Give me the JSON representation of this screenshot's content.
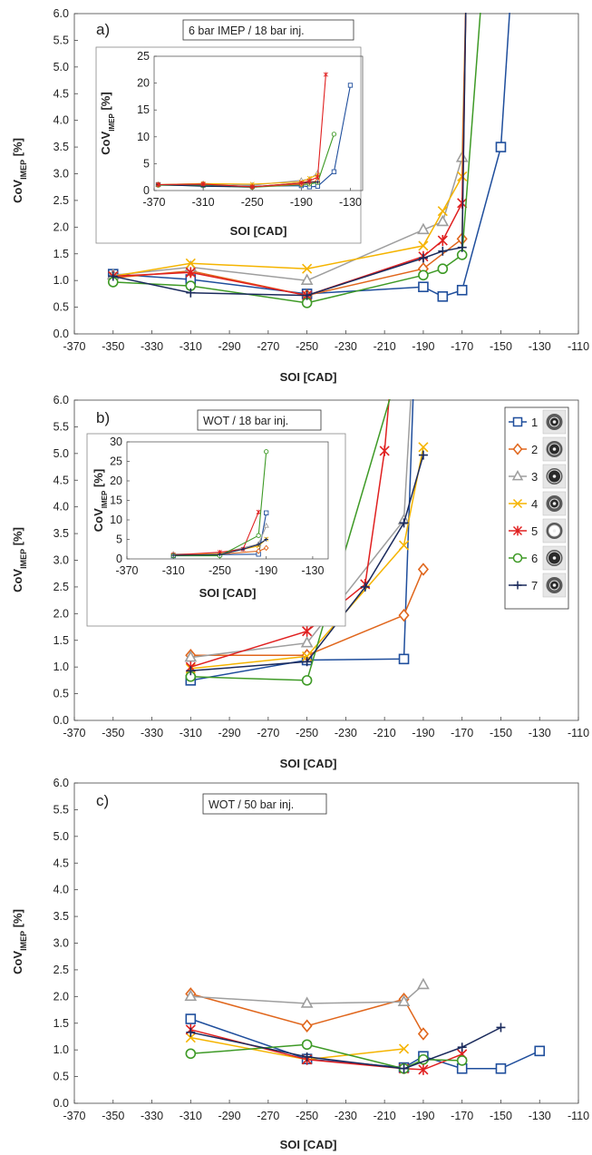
{
  "series_styles": [
    {
      "name": "1",
      "color": "#1f4e9c",
      "marker": "square"
    },
    {
      "name": "2",
      "color": "#e0661c",
      "marker": "diamond"
    },
    {
      "name": "3",
      "color": "#9e9e9e",
      "marker": "triangle"
    },
    {
      "name": "4",
      "color": "#f5b400",
      "marker": "x"
    },
    {
      "name": "5",
      "color": "#e02020",
      "marker": "star"
    },
    {
      "name": "6",
      "color": "#3e9a26",
      "marker": "circle"
    },
    {
      "name": "7",
      "color": "#1a2a5c",
      "marker": "plus"
    }
  ],
  "legend_icons": [
    "nozzle-1-icon",
    "nozzle-2-icon",
    "nozzle-3-icon",
    "nozzle-4-icon",
    "nozzle-5-icon",
    "nozzle-6-icon",
    "nozzle-7-icon"
  ],
  "chart_data": [
    {
      "type": "line",
      "panel_label": "a)",
      "annotation": "6 bar IMEP / 18 bar inj.",
      "xlabel": "SOI [CAD]",
      "ylabel_main": "CoV",
      "ylabel_sub": "IMEP",
      "ylabel_unit": " [%]",
      "xlim": [
        -370,
        -110
      ],
      "ylim": [
        0,
        6
      ],
      "xticks": [
        -370,
        -350,
        -330,
        -310,
        -290,
        -270,
        -250,
        -230,
        -210,
        -190,
        -170,
        -150,
        -130,
        -110
      ],
      "yticks": [
        0.0,
        0.5,
        1.0,
        1.5,
        2.0,
        2.5,
        3.0,
        3.5,
        4.0,
        4.5,
        5.0,
        5.5,
        6.0
      ],
      "grid": false,
      "legend": "none",
      "series": [
        {
          "name": "1",
          "x": [
            -350,
            -310,
            -250,
            -190,
            -180,
            -170,
            -150,
            -145
          ],
          "y": [
            1.12,
            1.02,
            0.75,
            0.88,
            0.7,
            0.82,
            3.5,
            6.3
          ]
        },
        {
          "name": "2",
          "x": [
            -350,
            -310,
            -250,
            -190,
            -170,
            -168
          ],
          "y": [
            1.05,
            1.18,
            0.72,
            1.22,
            1.78,
            6.3
          ]
        },
        {
          "name": "3",
          "x": [
            -350,
            -310,
            -250,
            -190,
            -180,
            -170,
            -168
          ],
          "y": [
            1.1,
            1.25,
            1.0,
            1.95,
            2.1,
            3.3,
            6.3
          ]
        },
        {
          "name": "4",
          "x": [
            -350,
            -310,
            -250,
            -190,
            -180,
            -170,
            -168
          ],
          "y": [
            1.08,
            1.32,
            1.22,
            1.65,
            2.3,
            2.95,
            6.3
          ]
        },
        {
          "name": "5",
          "x": [
            -350,
            -310,
            -250,
            -190,
            -180,
            -170,
            -168
          ],
          "y": [
            1.08,
            1.15,
            0.72,
            1.45,
            1.75,
            2.45,
            6.3
          ]
        },
        {
          "name": "6",
          "x": [
            -350,
            -310,
            -250,
            -190,
            -180,
            -170,
            -160
          ],
          "y": [
            0.97,
            0.9,
            0.58,
            1.1,
            1.22,
            1.48,
            6.3
          ]
        },
        {
          "name": "7",
          "x": [
            -350,
            -310,
            -250,
            -190,
            -180,
            -170,
            -168
          ],
          "y": [
            1.08,
            0.77,
            0.72,
            1.42,
            1.55,
            1.62,
            6.3
          ]
        }
      ],
      "inset": {
        "xlabel": "SOI [CAD]",
        "ylabel_main": "CoV",
        "ylabel_sub": "IMEP",
        "ylabel_unit": " [%]",
        "xlim": [
          -370,
          -115
        ],
        "ylim": [
          0,
          25
        ],
        "xticks": [
          -370,
          -310,
          -250,
          -190,
          -130
        ],
        "yticks": [
          0,
          5,
          10,
          15,
          20,
          25
        ],
        "series": [
          {
            "name": "1",
            "x": [
              -365,
              -310,
              -250,
              -190,
              -180,
              -170,
              -150,
              -130
            ],
            "y": [
              1.1,
              1.0,
              0.8,
              0.9,
              0.7,
              0.8,
              3.5,
              19.6
            ]
          },
          {
            "name": "3",
            "x": [
              -365,
              -310,
              -250,
              -190,
              -180,
              -170
            ],
            "y": [
              1.1,
              1.3,
              1.0,
              1.9,
              2.1,
              3.3
            ]
          },
          {
            "name": "4",
            "x": [
              -365,
              -310,
              -250,
              -190,
              -180,
              -170
            ],
            "y": [
              1.1,
              1.3,
              1.2,
              1.6,
              2.3,
              2.9
            ]
          },
          {
            "name": "6",
            "x": [
              -365,
              -310,
              -250,
              -190,
              -180,
              -170,
              -150
            ],
            "y": [
              1.0,
              0.9,
              0.6,
              1.1,
              1.2,
              1.5,
              10.5
            ]
          },
          {
            "name": "2",
            "x": [
              -365,
              -310,
              -250,
              -190,
              -180,
              -170
            ],
            "y": [
              1.1,
              1.2,
              0.7,
              1.2,
              1.5,
              1.8
            ]
          },
          {
            "name": "7",
            "x": [
              -365,
              -310,
              -250,
              -190,
              -180,
              -170
            ],
            "y": [
              1.1,
              0.8,
              0.7,
              1.4,
              1.5,
              1.6
            ]
          },
          {
            "name": "5",
            "x": [
              -365,
              -310,
              -250,
              -190,
              -180,
              -170,
              -160
            ],
            "y": [
              1.1,
              1.2,
              0.7,
              1.4,
              1.8,
              2.5,
              21.6
            ]
          }
        ]
      }
    },
    {
      "type": "line",
      "panel_label": "b)",
      "annotation": "WOT / 18 bar inj.",
      "xlabel": "SOI [CAD]",
      "ylabel_main": "CoV",
      "ylabel_sub": "IMEP",
      "ylabel_unit": " [%]",
      "xlim": [
        -370,
        -110
      ],
      "ylim": [
        0,
        6
      ],
      "xticks": [
        -370,
        -350,
        -330,
        -310,
        -290,
        -270,
        -250,
        -230,
        -210,
        -190,
        -170,
        -150,
        -130,
        -110
      ],
      "yticks": [
        0.0,
        0.5,
        1.0,
        1.5,
        2.0,
        2.5,
        3.0,
        3.5,
        4.0,
        4.5,
        5.0,
        5.5,
        6.0
      ],
      "grid": false,
      "legend": "right",
      "series": [
        {
          "name": "1",
          "x": [
            -310,
            -250,
            -200,
            -195,
            -190
          ],
          "y": [
            0.75,
            1.13,
            1.15,
            6.3,
            6.3
          ]
        },
        {
          "name": "2",
          "x": [
            -310,
            -250,
            -200,
            -190
          ],
          "y": [
            1.22,
            1.22,
            1.97,
            2.83
          ]
        },
        {
          "name": "3",
          "x": [
            -310,
            -250,
            -200,
            -196
          ],
          "y": [
            1.18,
            1.45,
            3.75,
            6.3
          ]
        },
        {
          "name": "4",
          "x": [
            -310,
            -250,
            -200,
            -190
          ],
          "y": [
            0.97,
            1.2,
            3.28,
            5.12
          ]
        },
        {
          "name": "5",
          "x": [
            -310,
            -250,
            -220,
            -210,
            -207
          ],
          "y": [
            1.0,
            1.67,
            2.55,
            5.05,
            6.3
          ]
        },
        {
          "name": "6",
          "x": [
            -310,
            -250,
            -205,
            -200
          ],
          "y": [
            0.82,
            0.75,
            6.3,
            6.3
          ]
        },
        {
          "name": "7",
          "x": [
            -310,
            -250,
            -220,
            -200,
            -190
          ],
          "y": [
            0.93,
            1.1,
            2.5,
            3.7,
            4.97
          ]
        }
      ],
      "inset": {
        "xlabel": "SOI [CAD]",
        "ylabel_main": "CoV",
        "ylabel_sub": "IMEP",
        "ylabel_unit": " [%]",
        "xlim": [
          -370,
          -110
        ],
        "ylim": [
          0,
          30
        ],
        "xticks": [
          -370,
          -310,
          -250,
          -190,
          -130
        ],
        "yticks": [
          0,
          5,
          10,
          15,
          20,
          25,
          30
        ],
        "series": [
          {
            "name": "1",
            "x": [
              -310,
              -250,
              -200,
              -190
            ],
            "y": [
              0.8,
              1.1,
              1.2,
              11.8
            ]
          },
          {
            "name": "2",
            "x": [
              -310,
              -250,
              -200,
              -190
            ],
            "y": [
              1.2,
              1.2,
              2.0,
              2.8
            ]
          },
          {
            "name": "3",
            "x": [
              -310,
              -250,
              -200,
              -190
            ],
            "y": [
              1.2,
              1.4,
              3.8,
              8.5
            ]
          },
          {
            "name": "4",
            "x": [
              -310,
              -250,
              -200,
              -190
            ],
            "y": [
              1.0,
              1.2,
              3.3,
              5.1
            ]
          },
          {
            "name": "5",
            "x": [
              -310,
              -250,
              -220,
              -200
            ],
            "y": [
              1.0,
              1.7,
              2.5,
              12.0
            ]
          },
          {
            "name": "6",
            "x": [
              -310,
              -250,
              -200,
              -190
            ],
            "y": [
              0.8,
              0.8,
              6.0,
              27.5
            ]
          },
          {
            "name": "7",
            "x": [
              -310,
              -250,
              -220,
              -200,
              -190
            ],
            "y": [
              0.9,
              1.1,
              2.5,
              3.7,
              5.0
            ]
          }
        ]
      }
    },
    {
      "type": "line",
      "panel_label": "c)",
      "annotation": "WOT / 50 bar inj.",
      "xlabel": "SOI [CAD]",
      "ylabel_main": "CoV",
      "ylabel_sub": "IMEP",
      "ylabel_unit": " [%]",
      "xlim": [
        -370,
        -110
      ],
      "ylim": [
        0,
        6
      ],
      "xticks": [
        -370,
        -350,
        -330,
        -310,
        -290,
        -270,
        -250,
        -230,
        -210,
        -190,
        -170,
        -150,
        -130,
        -110
      ],
      "yticks": [
        0.0,
        0.5,
        1.0,
        1.5,
        2.0,
        2.5,
        3.0,
        3.5,
        4.0,
        4.5,
        5.0,
        5.5,
        6.0
      ],
      "grid": false,
      "legend": "none",
      "series": [
        {
          "name": "1",
          "x": [
            -310,
            -250,
            -200,
            -190,
            -170,
            -150,
            -130
          ],
          "y": [
            1.58,
            0.83,
            0.67,
            0.88,
            0.65,
            0.65,
            0.98
          ]
        },
        {
          "name": "2",
          "x": [
            -310,
            -250,
            -200,
            -190
          ],
          "y": [
            2.05,
            1.45,
            1.95,
            1.3
          ]
        },
        {
          "name": "3",
          "x": [
            -310,
            -250,
            -200,
            -190
          ],
          "y": [
            2.0,
            1.87,
            1.9,
            2.22
          ]
        },
        {
          "name": "4",
          "x": [
            -310,
            -250,
            -200
          ],
          "y": [
            1.23,
            0.82,
            1.02
          ]
        },
        {
          "name": "5",
          "x": [
            -310,
            -250,
            -200,
            -190,
            -170
          ],
          "y": [
            1.38,
            0.82,
            0.65,
            0.63,
            0.92
          ]
        },
        {
          "name": "6",
          "x": [
            -310,
            -250,
            -200,
            -190,
            -170
          ],
          "y": [
            0.93,
            1.1,
            0.65,
            0.82,
            0.8
          ]
        },
        {
          "name": "7",
          "x": [
            -310,
            -250,
            -200,
            -170,
            -150
          ],
          "y": [
            1.33,
            0.87,
            0.65,
            1.05,
            1.42
          ]
        }
      ]
    }
  ]
}
